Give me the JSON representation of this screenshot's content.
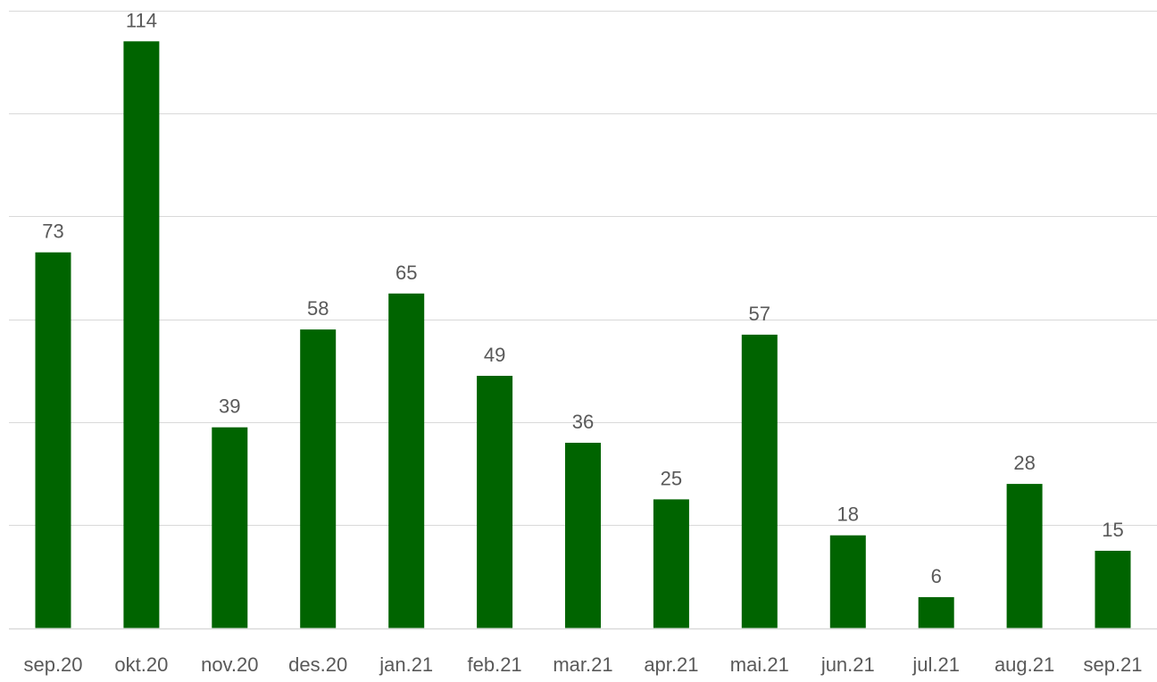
{
  "chart_data": {
    "type": "bar",
    "title": "",
    "xlabel": "",
    "ylabel": "",
    "categories": [
      "sep.20",
      "okt.20",
      "nov.20",
      "des.20",
      "jan.21",
      "feb.21",
      "mar.21",
      "apr.21",
      "mai.21",
      "jun.21",
      "jul.21",
      "aug.21",
      "sep.21"
    ],
    "values": [
      73,
      114,
      39,
      58,
      65,
      49,
      36,
      25,
      57,
      18,
      6,
      28,
      15
    ],
    "ylim": [
      0,
      120
    ],
    "y_gridlines": [
      0,
      20,
      40,
      60,
      80,
      100,
      120
    ],
    "grid": true,
    "y_axis_labels_shown": false,
    "data_labels_shown": true,
    "legend": "none",
    "bar_color": "#006400",
    "gridline_color": "#d9d9d9",
    "label_color": "#595959"
  }
}
